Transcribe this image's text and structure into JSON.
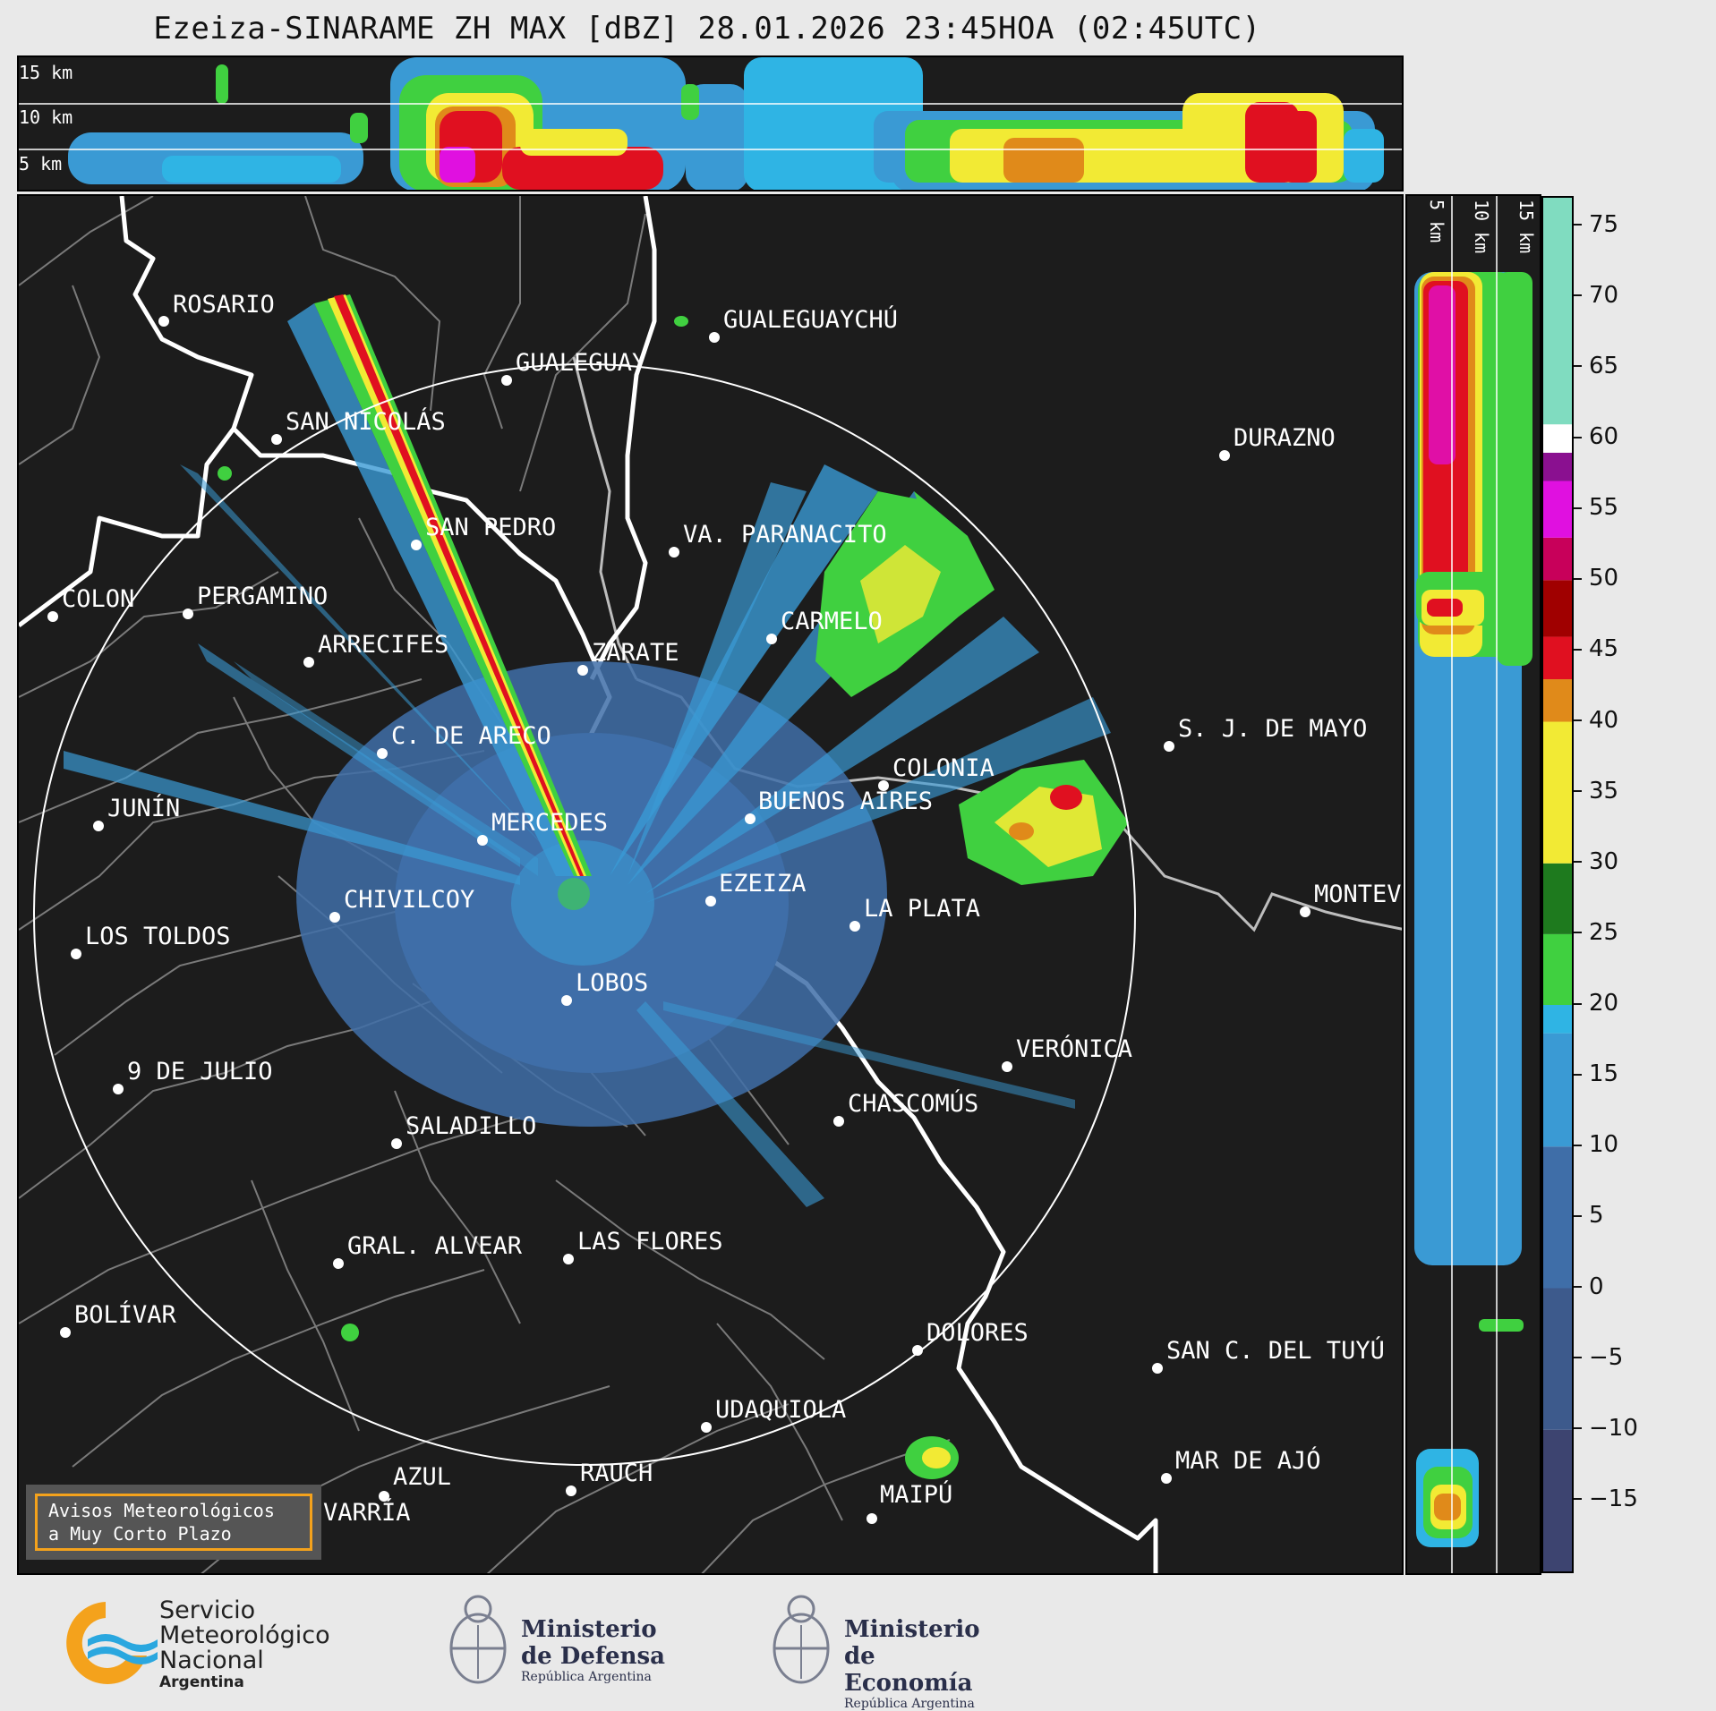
{
  "title": "Ezeiza-SINARAME ZH MAX [dBZ] 28.01.2026 23:45HOA (02:45UTC)",
  "top_panel": {
    "height_labels": [
      "15 km",
      "10 km",
      "5 km"
    ]
  },
  "side_panel": {
    "height_labels": [
      "5 km",
      "10 km",
      "15 km"
    ]
  },
  "colorbar": {
    "ticks": [
      "75",
      "70",
      "65",
      "60",
      "55",
      "50",
      "45",
      "40",
      "35",
      "30",
      "25",
      "20",
      "15",
      "10",
      "5",
      "0",
      "−5",
      "−10",
      "−15"
    ],
    "tick_values": [
      75,
      70,
      65,
      60,
      55,
      50,
      45,
      40,
      35,
      30,
      25,
      20,
      15,
      10,
      5,
      0,
      -5,
      -10,
      -15
    ],
    "range": [
      -20,
      77
    ],
    "colors": {
      "dark_blue": "#3d4470",
      "blue": "#3f6ea8",
      "light_blue": "#3a9ad4",
      "cyan": "#2fb4e4",
      "green": "#40d040",
      "dark_green": "#1e7a1e",
      "yellow": "#f2ea34",
      "orange": "#e08a1a",
      "red": "#e01020",
      "dark_red": "#a00000",
      "magenta": "#e010e0",
      "purple": "#8a1090",
      "white": "#ffffff",
      "mint": "#80dcc0"
    }
  },
  "cities": [
    {
      "name": "ROSARIO"
    },
    {
      "name": "GUALEGUAYCHÚ"
    },
    {
      "name": "GUALEGUAY"
    },
    {
      "name": "SAN NICOLÁS"
    },
    {
      "name": "DURAZNO"
    },
    {
      "name": "SAN PEDRO"
    },
    {
      "name": "VA. PARANACITO"
    },
    {
      "name": "COLON"
    },
    {
      "name": "PERGAMINO"
    },
    {
      "name": "CARMELO"
    },
    {
      "name": "ARRECIFES"
    },
    {
      "name": "ZÁRATE"
    },
    {
      "name": "S. J. DE MAYO"
    },
    {
      "name": "C. DE ARECO"
    },
    {
      "name": "COLONIA"
    },
    {
      "name": "BUENOS AIRES"
    },
    {
      "name": "JUNÍN"
    },
    {
      "name": "MERCEDES"
    },
    {
      "name": "EZEIZA"
    },
    {
      "name": "MONTEV"
    },
    {
      "name": "CHIVILCOY"
    },
    {
      "name": "LA PLATA"
    },
    {
      "name": "LOS TOLDOS"
    },
    {
      "name": "LOBOS"
    },
    {
      "name": "VERÓNICA"
    },
    {
      "name": "9 DE JULIO"
    },
    {
      "name": "CHASCOMÚS"
    },
    {
      "name": "SALADILLO"
    },
    {
      "name": "GRAL. ALVEAR"
    },
    {
      "name": "LAS FLORES"
    },
    {
      "name": "BOLÍVAR"
    },
    {
      "name": "DOLORES"
    },
    {
      "name": "SAN C. DEL TUYÚ"
    },
    {
      "name": "UDAQUIOLA"
    },
    {
      "name": "MAR DE AJÓ"
    },
    {
      "name": "AZUL"
    },
    {
      "name": "RAUCH"
    },
    {
      "name": "VARRÍA"
    },
    {
      "name": "MAIPÚ"
    }
  ],
  "alert_box": {
    "line1": "Avisos Meteorológicos",
    "line2": "a Muy Corto Plazo"
  },
  "footer": {
    "smn": {
      "line1": "Servicio",
      "line2": "Meteorológico",
      "line3": "Nacional",
      "line4": "Argentina"
    },
    "defensa": {
      "line1": "Ministerio",
      "line2": "de Defensa",
      "line3": "República Argentina"
    },
    "economia": {
      "line1": "Ministerio",
      "line2": "de Economía",
      "line3": "República Argentina"
    }
  }
}
